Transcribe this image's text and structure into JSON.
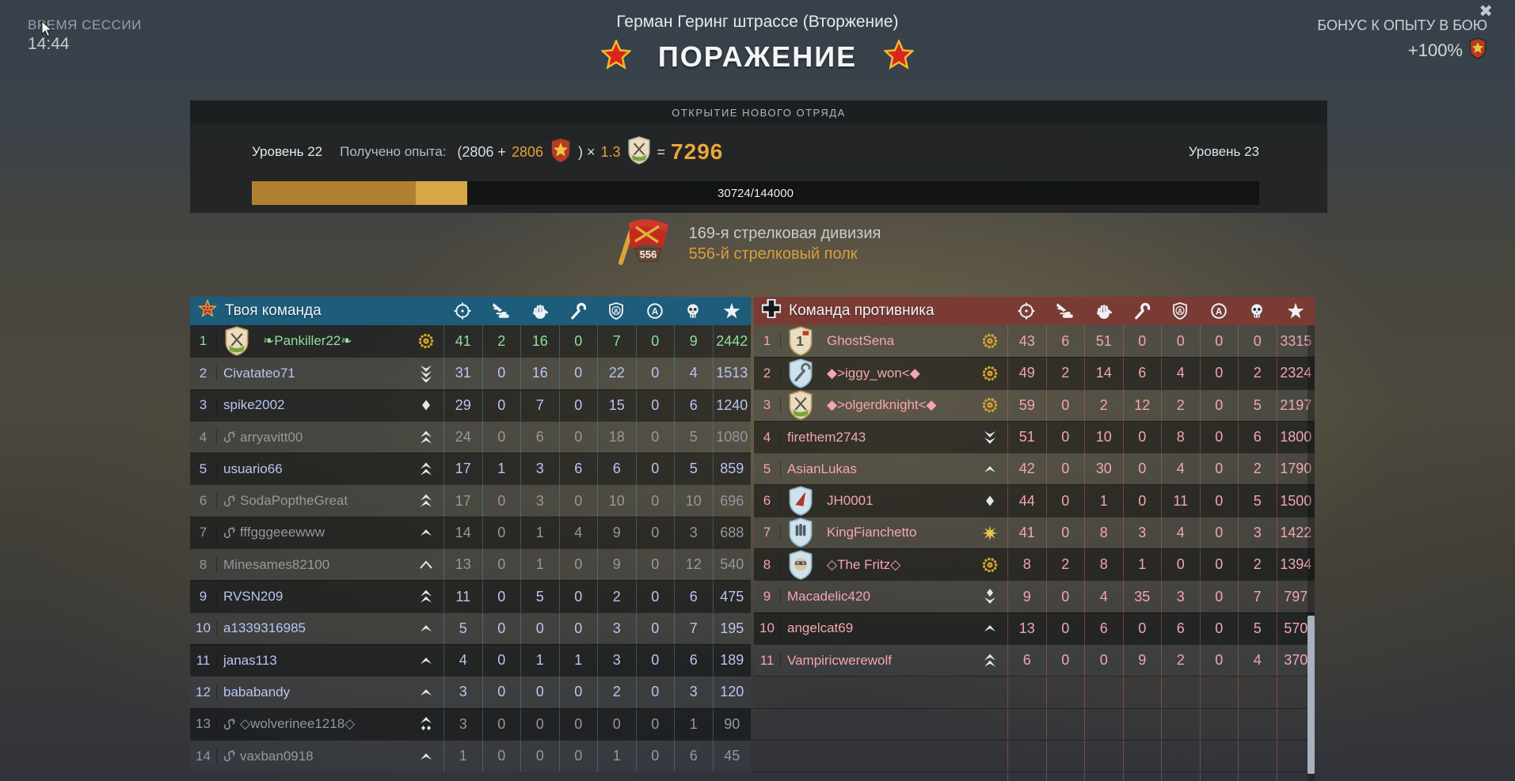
{
  "session": {
    "label": "ВРЕМЯ СЕССИИ",
    "time": "14:44"
  },
  "header": {
    "map_title": "Герман Геринг штрассе (Вторжение)",
    "result": "ПОРАЖЕНИЕ",
    "close": "✖",
    "bonus_label": "БОНУС К ОПЫТУ В БОЮ",
    "bonus_value": "+100%"
  },
  "squad": {
    "title": "ОТКРЫТИЕ НОВОГО ОТРЯДА",
    "level_left": "Уровень 22",
    "level_right": "Уровень 23",
    "xp_label": "Получено опыта:",
    "open": "(2806 +",
    "bonus": "2806",
    "close_mult": ") ×",
    "mult": "1.3",
    "eq": "=",
    "total": "7296",
    "progress_text": "30724/144000",
    "progress_pct_total": 21.4,
    "progress_pct_prev": 16.3,
    "division": "169-я стрелковая дивизия",
    "regiment": "556-й стрелковый полк",
    "flag_number": "556"
  },
  "colors": {
    "self": "#8fdf9f",
    "ally": "#b9c4f2",
    "bot": "#94989b",
    "enemy": "#f2a6ae",
    "badge_silver": "#e2e7ea",
    "badge_gold": "#d9a62e",
    "left_header": "#1d5c7a",
    "right_header": "#7a3b35",
    "left_sep": "rgba(80,160,195,0.40)",
    "right_sep": "rgba(205,100,88,0.45)"
  },
  "columns": [
    "crosshair-icon",
    "vehicle-kill-icon",
    "hand-icon",
    "wrench-icon",
    "shield-a-icon",
    "circle-a-icon",
    "skull-icon",
    "star-icon"
  ],
  "teams": {
    "left": {
      "name": "Твоя команда",
      "icon": "soviet-star-icon",
      "players": [
        {
          "rank": 1,
          "name": "❧Pankiller22❧",
          "role": "self",
          "emblem": "rifles",
          "badge": "wreath",
          "disconnected": false,
          "stats": [
            41,
            2,
            16,
            0,
            7,
            0,
            9,
            2442
          ]
        },
        {
          "rank": 2,
          "name": "Civatateo71",
          "role": "ally",
          "emblem": null,
          "badge": "chevrons_down_3",
          "disconnected": false,
          "stats": [
            31,
            0,
            16,
            0,
            22,
            0,
            4,
            1513
          ]
        },
        {
          "rank": 3,
          "name": "spike2002",
          "role": "ally",
          "emblem": null,
          "badge": "diamond",
          "disconnected": false,
          "stats": [
            29,
            0,
            7,
            0,
            15,
            0,
            6,
            1240
          ]
        },
        {
          "rank": 4,
          "name": "arryavitt00",
          "role": "bot",
          "emblem": null,
          "badge": "chevrons_up_2",
          "disconnected": true,
          "stats": [
            24,
            0,
            6,
            0,
            18,
            0,
            5,
            1080
          ]
        },
        {
          "rank": 5,
          "name": "usuario66",
          "role": "ally",
          "emblem": null,
          "badge": "chevrons_up_2",
          "disconnected": false,
          "stats": [
            17,
            1,
            3,
            6,
            6,
            0,
            5,
            859
          ]
        },
        {
          "rank": 6,
          "name": "SodaPoptheGreat",
          "role": "bot",
          "emblem": null,
          "badge": "chevrons_up_2",
          "disconnected": true,
          "stats": [
            17,
            0,
            3,
            0,
            10,
            0,
            10,
            696
          ]
        },
        {
          "rank": 7,
          "name": "fffgggeeewww",
          "role": "bot",
          "emblem": null,
          "badge": "chevron_up",
          "disconnected": true,
          "stats": [
            14,
            0,
            1,
            4,
            9,
            0,
            3,
            688
          ]
        },
        {
          "rank": 8,
          "name": "Minesames82100",
          "role": "bot",
          "emblem": null,
          "badge": "chevron_up_outline",
          "disconnected": false,
          "stats": [
            13,
            0,
            1,
            0,
            9,
            0,
            12,
            540
          ]
        },
        {
          "rank": 9,
          "name": "RVSN209",
          "role": "ally",
          "emblem": null,
          "badge": "chevrons_up_2",
          "disconnected": false,
          "stats": [
            11,
            0,
            5,
            0,
            2,
            0,
            6,
            475
          ]
        },
        {
          "rank": 10,
          "name": "a1339316985",
          "role": "ally",
          "emblem": null,
          "badge": "chevron_up",
          "disconnected": false,
          "stats": [
            5,
            0,
            0,
            0,
            3,
            0,
            7,
            195
          ]
        },
        {
          "rank": 11,
          "name": "janas113",
          "role": "ally",
          "emblem": null,
          "badge": "chevron_up",
          "disconnected": false,
          "stats": [
            4,
            0,
            1,
            1,
            3,
            0,
            6,
            189
          ]
        },
        {
          "rank": 12,
          "name": "bababandy",
          "role": "ally",
          "emblem": null,
          "badge": "chevron_up",
          "disconnected": false,
          "stats": [
            3,
            0,
            0,
            0,
            2,
            0,
            3,
            120
          ]
        },
        {
          "rank": 13,
          "name": "◇wolverinee1218◇",
          "role": "bot",
          "emblem": null,
          "badge": "chevron_diamonds",
          "disconnected": true,
          "stats": [
            3,
            0,
            0,
            0,
            0,
            0,
            1,
            90
          ]
        },
        {
          "rank": 14,
          "name": "vaxban0918",
          "role": "bot",
          "emblem": null,
          "badge": "chevron_up",
          "disconnected": true,
          "stats": [
            1,
            0,
            0,
            0,
            1,
            0,
            6,
            45
          ]
        }
      ]
    },
    "right": {
      "name": "Команда противника",
      "icon": "german-cross-icon",
      "players": [
        {
          "rank": 1,
          "name": "GhostSena",
          "role": "enemy",
          "emblem": "one",
          "badge": "wreath",
          "disconnected": false,
          "stats": [
            43,
            6,
            51,
            0,
            0,
            0,
            0,
            3315
          ]
        },
        {
          "rank": 2,
          "name": "◆>iggy_won<◆",
          "role": "enemy",
          "emblem": "wrench_shield",
          "badge": "wreath",
          "disconnected": false,
          "stats": [
            49,
            2,
            14,
            6,
            4,
            0,
            2,
            2324
          ]
        },
        {
          "rank": 3,
          "name": "◆>olgerdknight<◆",
          "role": "enemy",
          "emblem": "rifles",
          "badge": "wreath",
          "disconnected": false,
          "stats": [
            59,
            0,
            2,
            12,
            2,
            0,
            5,
            2197
          ]
        },
        {
          "rank": 4,
          "name": "firethem2743",
          "role": "enemy",
          "emblem": null,
          "badge": "chevrons_down_2",
          "disconnected": false,
          "stats": [
            51,
            0,
            10,
            0,
            8,
            0,
            6,
            1800
          ]
        },
        {
          "rank": 5,
          "name": "AsianLukas",
          "role": "enemy",
          "emblem": null,
          "badge": "chevron_up",
          "disconnected": false,
          "stats": [
            42,
            0,
            30,
            0,
            4,
            0,
            2,
            1790
          ]
        },
        {
          "rank": 6,
          "name": "JH0001",
          "role": "enemy",
          "emblem": "plane",
          "badge": "diamond",
          "disconnected": false,
          "stats": [
            44,
            0,
            1,
            0,
            11,
            0,
            5,
            1500
          ]
        },
        {
          "rank": 7,
          "name": "KingFianchetto",
          "role": "enemy",
          "emblem": "bullets",
          "badge": "star_gold",
          "disconnected": false,
          "stats": [
            41,
            0,
            8,
            3,
            4,
            0,
            3,
            1422
          ]
        },
        {
          "rank": 8,
          "name": "◇The Fritz◇",
          "role": "enemy",
          "emblem": "pilot",
          "badge": "wreath",
          "disconnected": false,
          "stats": [
            8,
            2,
            8,
            1,
            0,
            0,
            2,
            1394
          ]
        },
        {
          "rank": 9,
          "name": "Macadelic420",
          "role": "enemy",
          "emblem": null,
          "badge": "chevron_down_diamond",
          "disconnected": false,
          "stats": [
            9,
            0,
            4,
            35,
            3,
            0,
            7,
            797
          ]
        },
        {
          "rank": 10,
          "name": "angelcat69",
          "role": "enemy",
          "emblem": null,
          "badge": "chevron_up",
          "disconnected": false,
          "stats": [
            13,
            0,
            6,
            0,
            6,
            0,
            5,
            570
          ]
        },
        {
          "rank": 11,
          "name": "Vampiricwerewolf",
          "role": "enemy",
          "emblem": null,
          "badge": "chevrons_up_2",
          "disconnected": false,
          "stats": [
            6,
            0,
            0,
            9,
            2,
            0,
            4,
            370
          ]
        }
      ]
    }
  }
}
